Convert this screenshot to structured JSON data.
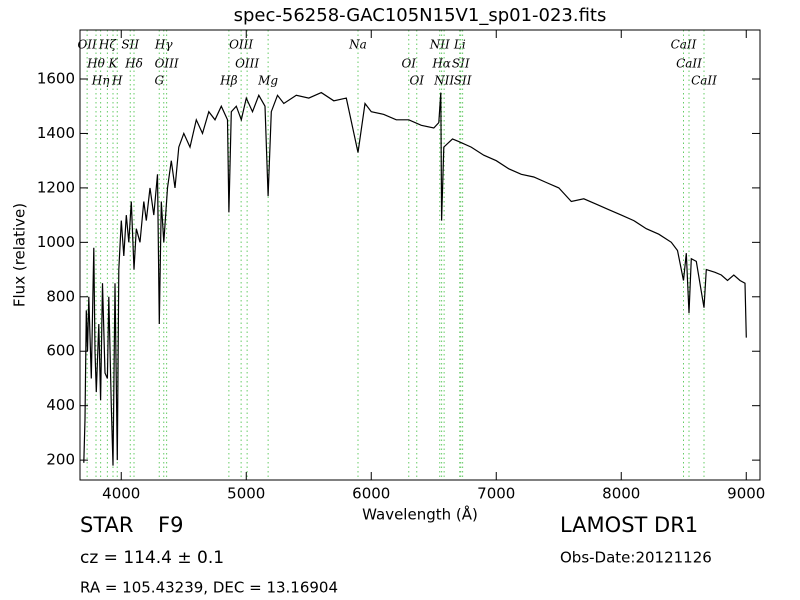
{
  "chart_data": {
    "type": "line",
    "title": "spec-56258-GAC105N15V1_sp01-023.fits",
    "x_label": "Wavelength (Å)",
    "y_label": "Flux (relative)",
    "x": [
      3700,
      3710,
      3720,
      3730,
      3740,
      3760,
      3780,
      3790,
      3800,
      3820,
      3835,
      3850,
      3870,
      3889,
      3900,
      3920,
      3934,
      3950,
      3968,
      3980,
      4000,
      4020,
      4040,
      4060,
      4080,
      4102,
      4120,
      4150,
      4180,
      4200,
      4230,
      4260,
      4290,
      4304,
      4320,
      4340,
      4370,
      4400,
      4430,
      4460,
      4500,
      4550,
      4600,
      4650,
      4700,
      4750,
      4800,
      4850,
      4861,
      4880,
      4920,
      4960,
      5000,
      5050,
      5100,
      5150,
      5175,
      5200,
      5250,
      5300,
      5400,
      5500,
      5600,
      5700,
      5800,
      5894,
      5950,
      6000,
      6100,
      6200,
      6300,
      6400,
      6500,
      6540,
      6556,
      6563,
      6580,
      6650,
      6700,
      6800,
      6900,
      7000,
      7100,
      7200,
      7300,
      7400,
      7500,
      7600,
      7700,
      7800,
      7900,
      8000,
      8100,
      8200,
      8300,
      8400,
      8450,
      8498,
      8520,
      8542,
      8560,
      8600,
      8662,
      8680,
      8750,
      8800,
      8850,
      8900,
      8950,
      8990,
      9000
    ],
    "values": [
      190,
      350,
      750,
      600,
      800,
      500,
      980,
      600,
      450,
      700,
      420,
      850,
      520,
      500,
      800,
      400,
      180,
      850,
      200,
      900,
      1080,
      950,
      1100,
      1000,
      1150,
      900,
      1050,
      1000,
      1150,
      1080,
      1200,
      1100,
      1250,
      700,
      1150,
      1000,
      1200,
      1300,
      1200,
      1350,
      1400,
      1350,
      1450,
      1400,
      1480,
      1450,
      1500,
      1450,
      1110,
      1480,
      1500,
      1450,
      1530,
      1480,
      1540,
      1500,
      1170,
      1480,
      1540,
      1510,
      1540,
      1530,
      1550,
      1520,
      1530,
      1330,
      1510,
      1480,
      1470,
      1450,
      1450,
      1430,
      1420,
      1440,
      1550,
      1080,
      1350,
      1380,
      1370,
      1350,
      1320,
      1300,
      1270,
      1250,
      1240,
      1220,
      1200,
      1150,
      1160,
      1140,
      1120,
      1100,
      1080,
      1050,
      1030,
      1000,
      970,
      860,
      960,
      740,
      940,
      930,
      760,
      900,
      890,
      880,
      860,
      880,
      860,
      850,
      650
    ],
    "color": "#000000",
    "xlim": [
      3670,
      9110
    ],
    "ylim": [
      127,
      1780
    ],
    "xticks": [
      4000,
      5000,
      6000,
      7000,
      8000,
      9000
    ],
    "yticks": [
      200,
      400,
      600,
      800,
      1000,
      1200,
      1400,
      1600
    ],
    "marker_color": "#66cc66",
    "spectral_lines": [
      {
        "label": "OII",
        "wavelength": 3727
      },
      {
        "label": "Hθ",
        "wavelength": 3798
      },
      {
        "label": "Hη",
        "wavelength": 3835
      },
      {
        "label": "Hζ",
        "wavelength": 3889
      },
      {
        "label": "K",
        "wavelength": 3934
      },
      {
        "label": "H",
        "wavelength": 3968
      },
      {
        "label": "SII",
        "wavelength": 4072
      },
      {
        "label": "Hδ",
        "wavelength": 4102
      },
      {
        "label": "G",
        "wavelength": 4304
      },
      {
        "label": "Hγ",
        "wavelength": 4340
      },
      {
        "label": "OIII",
        "wavelength": 4363
      },
      {
        "label": "Hβ",
        "wavelength": 4861
      },
      {
        "label": "OIII",
        "wavelength": 4959
      },
      {
        "label": "OIII",
        "wavelength": 5007
      },
      {
        "label": "Mg",
        "wavelength": 5175
      },
      {
        "label": "Na",
        "wavelength": 5894
      },
      {
        "label": "OI",
        "wavelength": 6300
      },
      {
        "label": "OI",
        "wavelength": 6364
      },
      {
        "label": "NII",
        "wavelength": 6548
      },
      {
        "label": "Hα",
        "wavelength": 6563
      },
      {
        "label": "NII",
        "wavelength": 6583
      },
      {
        "label": "Li",
        "wavelength": 6708
      },
      {
        "label": "SII",
        "wavelength": 6716
      },
      {
        "label": "SII",
        "wavelength": 6731
      },
      {
        "label": "CaII",
        "wavelength": 8498
      },
      {
        "label": "CaII",
        "wavelength": 8542
      },
      {
        "label": "CaII",
        "wavelength": 8662
      }
    ]
  },
  "footer": {
    "object_class": "STAR",
    "subclass": "F9",
    "redshift": "cz = 114.4 ± 0.1",
    "coordinates": "RA = 105.43239, DEC = 13.16904",
    "survey": "LAMOST DR1",
    "obs_date": "Obs-Date:20121126"
  }
}
